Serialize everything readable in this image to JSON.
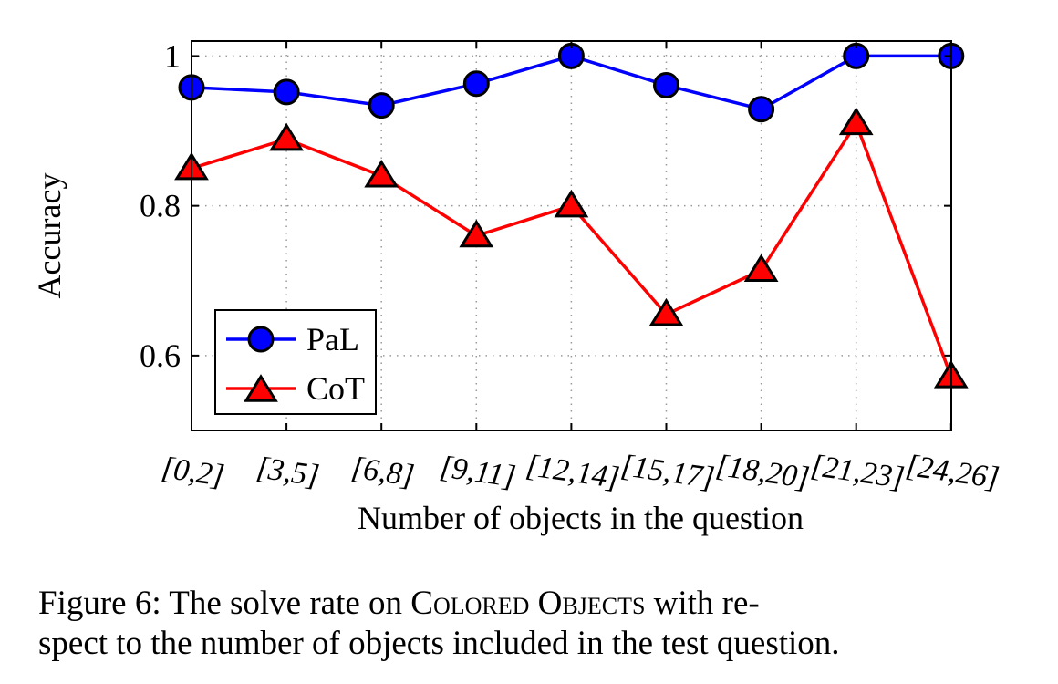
{
  "chart_data": {
    "type": "line",
    "categories": [
      "[0,2]",
      "[3,5]",
      "[6,8]",
      "[9,11]",
      "[12,14]",
      "[15,17]",
      "[18,20]",
      "[21,23]",
      "[24,26]"
    ],
    "series": [
      {
        "name": "PaL",
        "values": [
          0.958,
          0.952,
          0.934,
          0.963,
          1.0,
          0.961,
          0.929,
          1.0,
          1.0
        ],
        "color": "#0000ff",
        "marker": "circle"
      },
      {
        "name": "CoT",
        "values": [
          0.85,
          0.889,
          0.84,
          0.76,
          0.8,
          0.655,
          0.714,
          0.91,
          0.572
        ],
        "color": "#ff0000",
        "marker": "triangle"
      }
    ],
    "ylabel": "Accuracy",
    "xlabel": "Number of objects in the question",
    "ylim": [
      0.5,
      1.02
    ],
    "yticks": [
      0.6,
      0.8,
      1.0
    ],
    "ytick_labels": [
      "0.6",
      "0.8",
      "1"
    ],
    "grid": true,
    "legend_position": "bottom-left"
  },
  "caption": {
    "prefix": "Figure 6: The solve rate on ",
    "dataset": "Colored Objects",
    "suffix_line1": " with re-",
    "line2": "spect to the number of objects included in the test question."
  }
}
